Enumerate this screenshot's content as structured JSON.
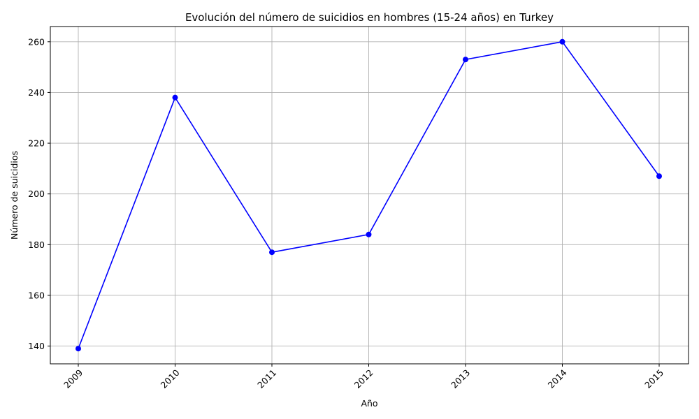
{
  "chart_data": {
    "type": "line",
    "title": "Evolución del número de suicidios en hombres (15-24 años) en Turkey",
    "xlabel": "Año",
    "ylabel": "Número de suicidios",
    "x": [
      "2009",
      "2010",
      "2011",
      "2012",
      "2013",
      "2014",
      "2015"
    ],
    "series": [
      {
        "values": [
          139,
          238,
          177,
          184,
          253,
          260,
          207
        ]
      }
    ],
    "yticks": [
      140,
      160,
      180,
      200,
      220,
      240,
      260
    ],
    "ylim": [
      133,
      266
    ],
    "grid": true,
    "line_color": "#0000ff",
    "marker": "circle",
    "x_tick_rotation_deg": 45
  }
}
